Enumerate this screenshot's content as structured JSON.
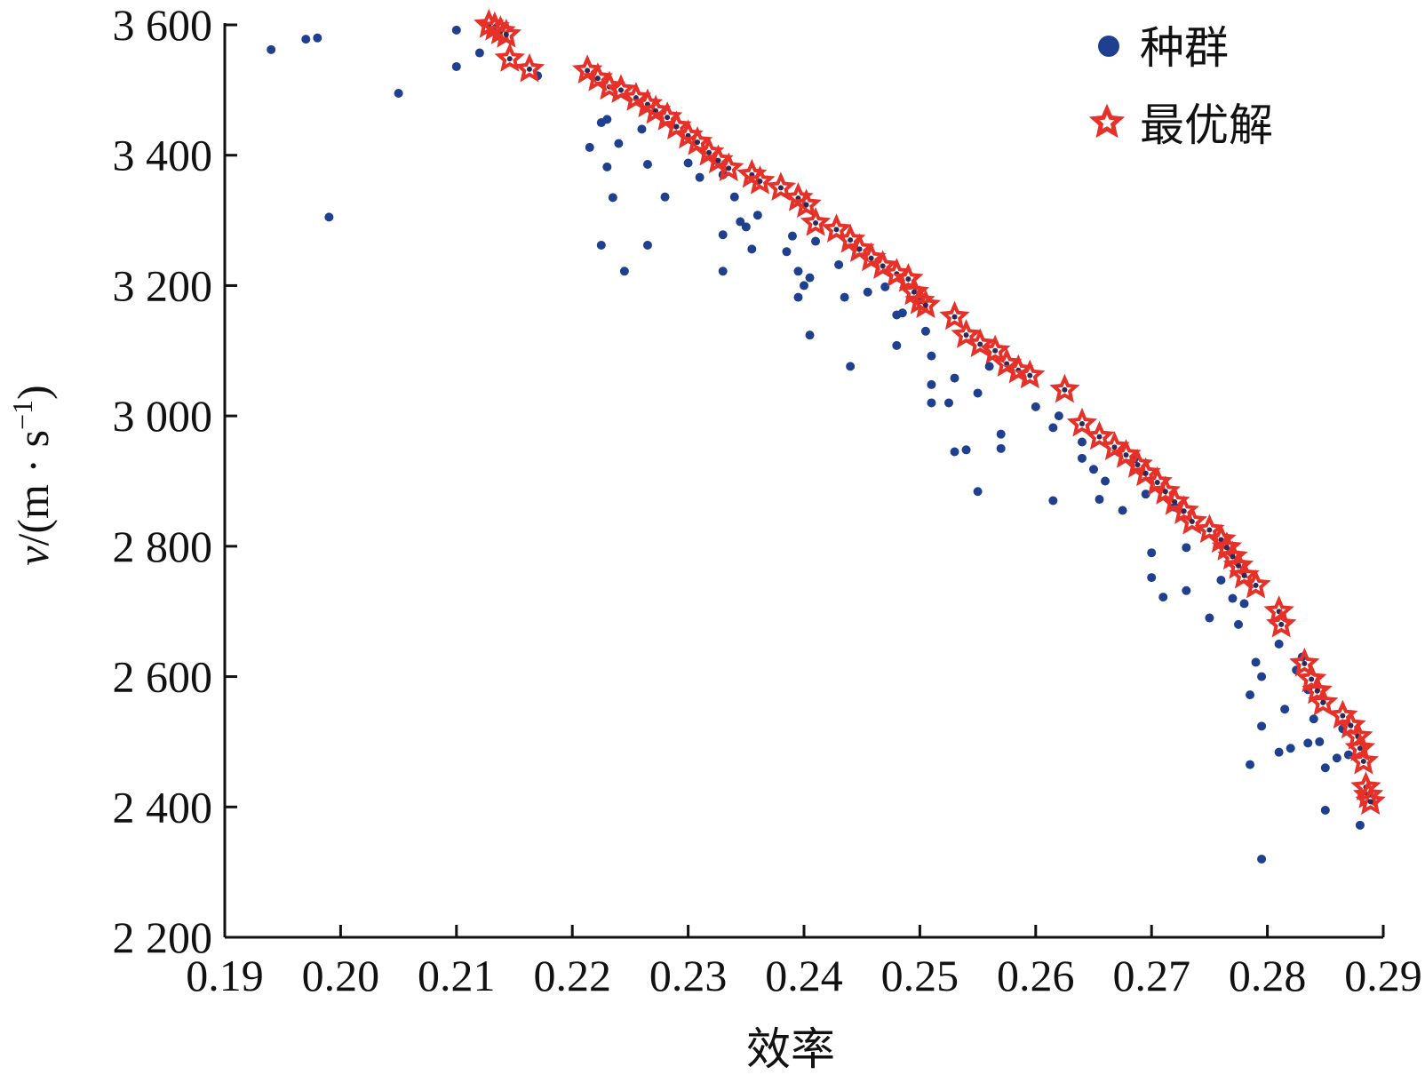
{
  "chart_data": {
    "type": "scatter",
    "xlabel": "效率",
    "ylabel": {
      "var": "v",
      "unit_open": "/(m · s",
      "unit_exp": "−1",
      "unit_close": ")"
    },
    "xlim": [
      0.19,
      0.29
    ],
    "ylim": [
      2200,
      3600
    ],
    "x_ticks": [
      "0.19",
      "0.20",
      "0.21",
      "0.22",
      "0.23",
      "0.24",
      "0.25",
      "0.26",
      "0.27",
      "0.28",
      "0.29"
    ],
    "y_ticks": [
      "2 200",
      "2 400",
      "2 600",
      "2 800",
      "3 000",
      "3 200",
      "3 400",
      "3 600"
    ],
    "grid": false,
    "legend_position": "top-right",
    "series": [
      {
        "name": "种群",
        "marker": "circle",
        "color": "#1f3f8f",
        "points": [
          [
            0.194,
            3562
          ],
          [
            0.197,
            3578
          ],
          [
            0.198,
            3580
          ],
          [
            0.199,
            3305
          ],
          [
            0.205,
            3495
          ],
          [
            0.21,
            3592
          ],
          [
            0.21,
            3536
          ],
          [
            0.212,
            3557
          ],
          [
            0.213,
            3590
          ],
          [
            0.217,
            3522
          ],
          [
            0.2215,
            3412
          ],
          [
            0.2225,
            3450
          ],
          [
            0.223,
            3455
          ],
          [
            0.223,
            3382
          ],
          [
            0.2235,
            3335
          ],
          [
            0.224,
            3418
          ],
          [
            0.2225,
            3262
          ],
          [
            0.2245,
            3222
          ],
          [
            0.226,
            3440
          ],
          [
            0.2265,
            3386
          ],
          [
            0.2265,
            3262
          ],
          [
            0.228,
            3336
          ],
          [
            0.23,
            3388
          ],
          [
            0.231,
            3366
          ],
          [
            0.233,
            3370
          ],
          [
            0.233,
            3278
          ],
          [
            0.234,
            3336
          ],
          [
            0.2345,
            3298
          ],
          [
            0.235,
            3290
          ],
          [
            0.236,
            3308
          ],
          [
            0.2355,
            3256
          ],
          [
            0.233,
            3222
          ],
          [
            0.2385,
            3252
          ],
          [
            0.239,
            3276
          ],
          [
            0.2395,
            3222
          ],
          [
            0.2395,
            3182
          ],
          [
            0.24,
            3200
          ],
          [
            0.2405,
            3212
          ],
          [
            0.2405,
            3124
          ],
          [
            0.241,
            3268
          ],
          [
            0.243,
            3232
          ],
          [
            0.2435,
            3182
          ],
          [
            0.244,
            3076
          ],
          [
            0.2455,
            3190
          ],
          [
            0.247,
            3198
          ],
          [
            0.248,
            3155
          ],
          [
            0.248,
            3108
          ],
          [
            0.2485,
            3158
          ],
          [
            0.2505,
            3130
          ],
          [
            0.251,
            3092
          ],
          [
            0.251,
            3048
          ],
          [
            0.251,
            3020
          ],
          [
            0.2525,
            3020
          ],
          [
            0.253,
            3058
          ],
          [
            0.253,
            2945
          ],
          [
            0.254,
            2948
          ],
          [
            0.255,
            3035
          ],
          [
            0.255,
            2884
          ],
          [
            0.256,
            3076
          ],
          [
            0.257,
            2972
          ],
          [
            0.257,
            2950
          ],
          [
            0.26,
            3014
          ],
          [
            0.2615,
            2982
          ],
          [
            0.262,
            3000
          ],
          [
            0.2615,
            2870
          ],
          [
            0.264,
            2960
          ],
          [
            0.264,
            2935
          ],
          [
            0.265,
            2918
          ],
          [
            0.2655,
            2872
          ],
          [
            0.266,
            2900
          ],
          [
            0.2675,
            2855
          ],
          [
            0.2685,
            2934
          ],
          [
            0.2695,
            2880
          ],
          [
            0.27,
            2790
          ],
          [
            0.27,
            2752
          ],
          [
            0.271,
            2722
          ],
          [
            0.272,
            2860
          ],
          [
            0.273,
            2798
          ],
          [
            0.273,
            2732
          ],
          [
            0.275,
            2690
          ],
          [
            0.276,
            2748
          ],
          [
            0.277,
            2720
          ],
          [
            0.2775,
            2680
          ],
          [
            0.278,
            2712
          ],
          [
            0.2785,
            2572
          ],
          [
            0.279,
            2622
          ],
          [
            0.2795,
            2600
          ],
          [
            0.2795,
            2524
          ],
          [
            0.2785,
            2465
          ],
          [
            0.2795,
            2320
          ],
          [
            0.281,
            2650
          ],
          [
            0.2815,
            2550
          ],
          [
            0.281,
            2484
          ],
          [
            0.282,
            2490
          ],
          [
            0.2825,
            2610
          ],
          [
            0.283,
            2630
          ],
          [
            0.2835,
            2580
          ],
          [
            0.2835,
            2498
          ],
          [
            0.284,
            2535
          ],
          [
            0.2845,
            2500
          ],
          [
            0.285,
            2460
          ],
          [
            0.285,
            2395
          ],
          [
            0.286,
            2475
          ],
          [
            0.2865,
            2520
          ],
          [
            0.287,
            2480
          ],
          [
            0.288,
            2372
          ]
        ]
      },
      {
        "name": "最优解",
        "marker": "star",
        "color": "#e63028",
        "points": [
          [
            0.2128,
            3600
          ],
          [
            0.2133,
            3596
          ],
          [
            0.2138,
            3590
          ],
          [
            0.2143,
            3585
          ],
          [
            0.2146,
            3548
          ],
          [
            0.2163,
            3532
          ],
          [
            0.2213,
            3530
          ],
          [
            0.2222,
            3518
          ],
          [
            0.2232,
            3505
          ],
          [
            0.2242,
            3500
          ],
          [
            0.2255,
            3488
          ],
          [
            0.2265,
            3478
          ],
          [
            0.2272,
            3468
          ],
          [
            0.2282,
            3458
          ],
          [
            0.229,
            3444
          ],
          [
            0.23,
            3430
          ],
          [
            0.2308,
            3420
          ],
          [
            0.2318,
            3404
          ],
          [
            0.2326,
            3392
          ],
          [
            0.2335,
            3380
          ],
          [
            0.2355,
            3370
          ],
          [
            0.2362,
            3360
          ],
          [
            0.238,
            3350
          ],
          [
            0.2395,
            3334
          ],
          [
            0.2402,
            3324
          ],
          [
            0.241,
            3296
          ],
          [
            0.2428,
            3286
          ],
          [
            0.244,
            3270
          ],
          [
            0.2448,
            3256
          ],
          [
            0.2458,
            3242
          ],
          [
            0.2468,
            3230
          ],
          [
            0.248,
            3218
          ],
          [
            0.249,
            3210
          ],
          [
            0.2495,
            3190
          ],
          [
            0.25,
            3176
          ],
          [
            0.2505,
            3170
          ],
          [
            0.253,
            3152
          ],
          [
            0.254,
            3124
          ],
          [
            0.2552,
            3110
          ],
          [
            0.2565,
            3100
          ],
          [
            0.2575,
            3080
          ],
          [
            0.2585,
            3070
          ],
          [
            0.2595,
            3062
          ],
          [
            0.2625,
            3040
          ],
          [
            0.264,
            2988
          ],
          [
            0.2655,
            2968
          ],
          [
            0.2668,
            2952
          ],
          [
            0.2678,
            2940
          ],
          [
            0.2688,
            2925
          ],
          [
            0.2695,
            2912
          ],
          [
            0.2705,
            2898
          ],
          [
            0.2712,
            2884
          ],
          [
            0.272,
            2868
          ],
          [
            0.2728,
            2854
          ],
          [
            0.2735,
            2838
          ],
          [
            0.275,
            2825
          ],
          [
            0.276,
            2810
          ],
          [
            0.2765,
            2798
          ],
          [
            0.277,
            2784
          ],
          [
            0.2775,
            2770
          ],
          [
            0.278,
            2755
          ],
          [
            0.279,
            2740
          ],
          [
            0.281,
            2700
          ],
          [
            0.2812,
            2680
          ],
          [
            0.2832,
            2620
          ],
          [
            0.2838,
            2596
          ],
          [
            0.2843,
            2578
          ],
          [
            0.2848,
            2560
          ],
          [
            0.2865,
            2540
          ],
          [
            0.2872,
            2525
          ],
          [
            0.2878,
            2508
          ],
          [
            0.288,
            2490
          ],
          [
            0.2883,
            2470
          ],
          [
            0.2885,
            2430
          ],
          [
            0.2887,
            2418
          ],
          [
            0.2889,
            2408
          ]
        ]
      }
    ]
  }
}
